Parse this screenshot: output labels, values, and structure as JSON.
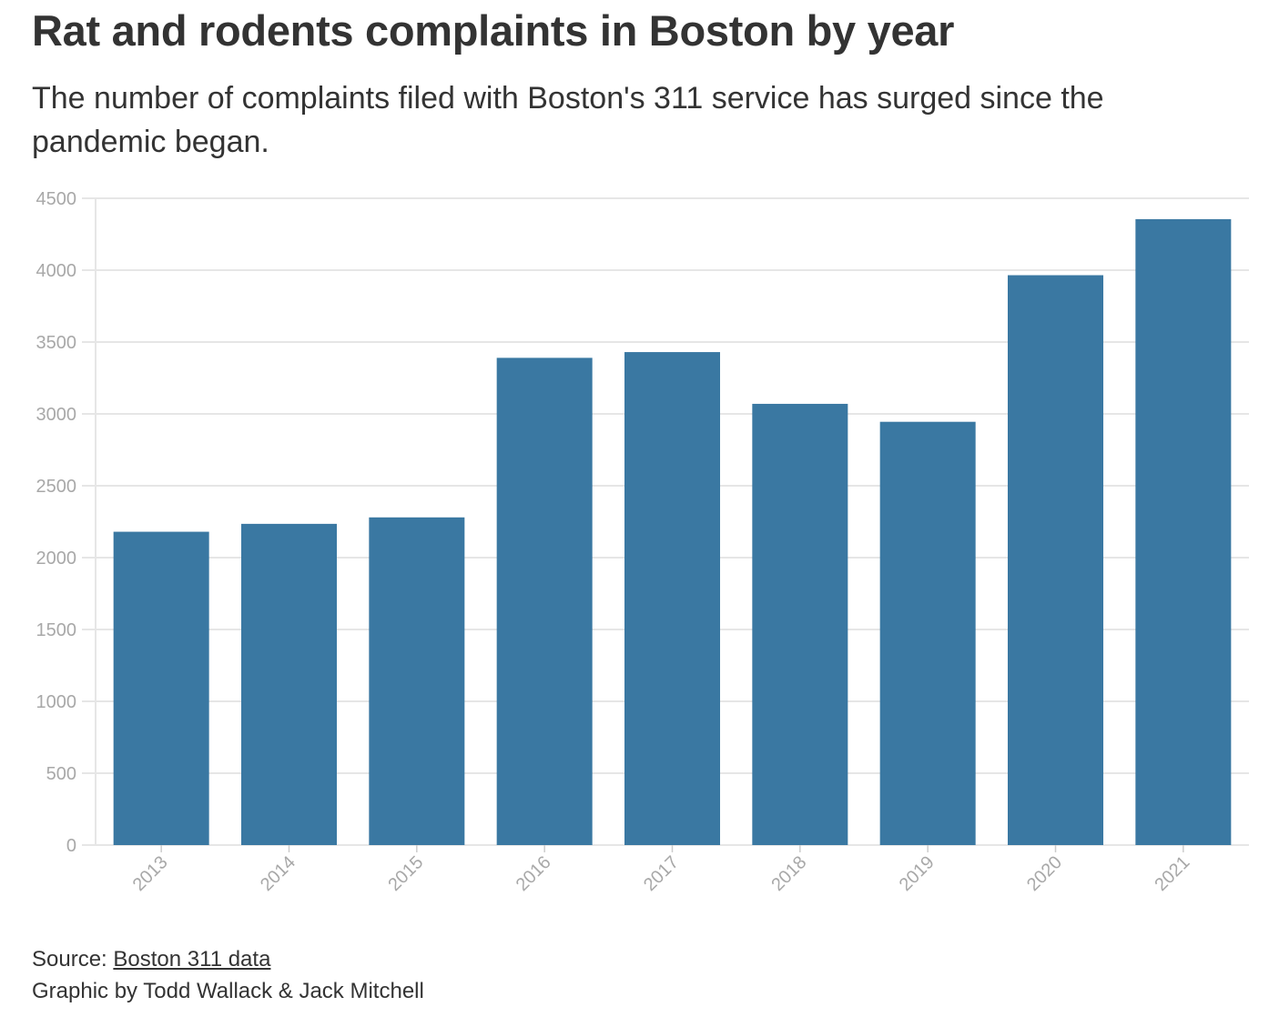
{
  "header": {
    "title": "Rat and rodents complaints in Boston by year",
    "subtitle": "The number of complaints filed with Boston's 311 service has surged since the pandemic began."
  },
  "footer": {
    "source_prefix": "Source: ",
    "source_link_text": "Boston 311 data",
    "byline": "Graphic by Todd Wallack & Jack Mitchell"
  },
  "colors": {
    "bar": "#3a78a2",
    "grid": "#e6e6e6",
    "tick_label": "#a8a8a8",
    "text": "#333333"
  },
  "chart_data": {
    "type": "bar",
    "title": "Rat and rodents complaints in Boston by year",
    "xlabel": "",
    "ylabel": "",
    "categories": [
      "2013",
      "2014",
      "2015",
      "2016",
      "2017",
      "2018",
      "2019",
      "2020",
      "2021"
    ],
    "values": [
      2180,
      2235,
      2280,
      3390,
      3430,
      3070,
      2945,
      3965,
      4355
    ],
    "ylim": [
      0,
      4500
    ],
    "yticks": [
      0,
      500,
      1000,
      1500,
      2000,
      2500,
      3000,
      3500,
      4000,
      4500
    ],
    "grid": true,
    "legend": "none"
  }
}
